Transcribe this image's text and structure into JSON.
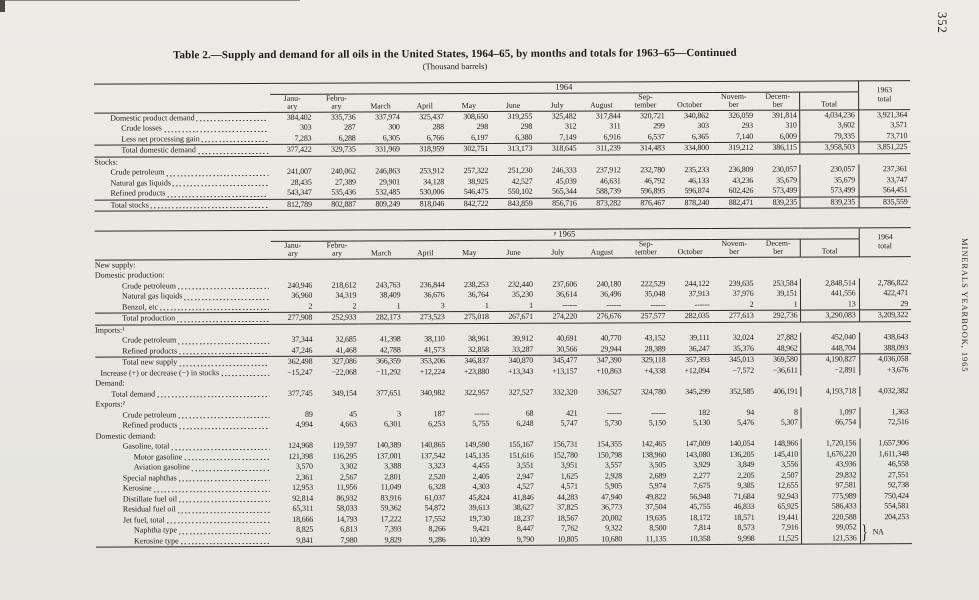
{
  "page": {
    "number": "352",
    "sidebar": "MINERALS YEARBOOK, 1965",
    "title": "Table 2.—Supply and demand for all oils in the United States, 1964–65, by months and totals for 1963–65—Continued",
    "subtitle": "(Thousand barrels)"
  },
  "tables": [
    {
      "year_label": "1964",
      "prior_label": "1963\ntotal",
      "months": [
        "Janu-\nary",
        "Febru-\nary",
        "March",
        "April",
        "May",
        "June",
        "July",
        "August",
        "Sep-\ntember",
        "October",
        "Novem-\nber",
        "Decem-\nber",
        "Total"
      ],
      "rows": [
        {
          "label": "Domestic product demand",
          "indent": 1,
          "values": [
            "384,402",
            "335,736",
            "337,974",
            "325,437",
            "308,650",
            "319,255",
            "325,482",
            "317,844",
            "320,721",
            "340,862",
            "326,059",
            "391,814",
            "4,034,236",
            "3,921,364"
          ]
        },
        {
          "label": "Crude losses",
          "indent": 2,
          "values": [
            "303",
            "287",
            "300",
            "288",
            "298",
            "298",
            "312",
            "311",
            "299",
            "303",
            "293",
            "310",
            "3,602",
            "3,571"
          ]
        },
        {
          "label": "Less net processing gain",
          "indent": 2,
          "values": [
            "7,283",
            "6,288",
            "6,305",
            "6,766",
            "6,197",
            "6,380",
            "7,149",
            "6,916",
            "6,537",
            "6,365",
            "7,140",
            "6,009",
            "79,335",
            "73,710"
          ]
        },
        {
          "label": "Total domestic demand",
          "indent": 2,
          "rule_above": true,
          "values": [
            "377,422",
            "329,735",
            "331,969",
            "318,959",
            "302,751",
            "313,173",
            "318,645",
            "311,239",
            "314,483",
            "334,800",
            "319,212",
            "386,115",
            "3,958,503",
            "3,851,225"
          ]
        },
        {
          "label": "Stocks:",
          "indent": 0,
          "section": true,
          "rule_above": true
        },
        {
          "label": "Crude petroleum",
          "indent": 1,
          "values": [
            "241,007",
            "240,062",
            "246,863",
            "253,912",
            "257,322",
            "251,230",
            "246,333",
            "237,912",
            "232,780",
            "235,233",
            "236,809",
            "230,057",
            "230,057",
            "237,361"
          ]
        },
        {
          "label": "Natural gas liquids",
          "indent": 1,
          "values": [
            "28,435",
            "27,389",
            "29,901",
            "34,128",
            "38,925",
            "42,527",
            "45,039",
            "46,631",
            "46,792",
            "46,133",
            "43,236",
            "35,679",
            "35,679",
            "33,747"
          ]
        },
        {
          "label": "Refined products",
          "indent": 1,
          "values": [
            "543,347",
            "535,436",
            "532,485",
            "530,006",
            "546,475",
            "550,102",
            "565,344",
            "588,739",
            "596,895",
            "596,874",
            "602,426",
            "573,499",
            "573,499",
            "564,451"
          ]
        },
        {
          "label": "Total stocks",
          "indent": 1,
          "rule_above": true,
          "values": [
            "812,789",
            "802,887",
            "809,249",
            "818,046",
            "842,722",
            "843,859",
            "856,716",
            "873,282",
            "876,467",
            "878,240",
            "882,471",
            "839,235",
            "839,235",
            "835,559"
          ]
        }
      ]
    },
    {
      "year_label": "ᵖ 1965",
      "prior_label": "1964\ntotal",
      "months": [
        "Janu-\nary",
        "Febru-\nary",
        "March",
        "April",
        "May",
        "June",
        "July",
        "August",
        "Sep-\ntember",
        "October",
        "Novem-\nber",
        "Decem-\nber",
        "Total"
      ],
      "rows": [
        {
          "label": "New supply:",
          "indent": 0,
          "section": true
        },
        {
          "label": "Domestic production:",
          "indent": 1,
          "section": true
        },
        {
          "label": "Crude petroleum",
          "indent": 2,
          "values": [
            "240,946",
            "218,612",
            "243,763",
            "236,844",
            "238,253",
            "232,440",
            "237,606",
            "240,180",
            "222,529",
            "244,122",
            "239,635",
            "253,584",
            "2,848,514",
            "2,786,822"
          ]
        },
        {
          "label": "Natural gas liquids",
          "indent": 2,
          "values": [
            "36,960",
            "34,319",
            "38,409",
            "36,676",
            "36,764",
            "35,230",
            "36,614",
            "36,496",
            "35,048",
            "37,913",
            "37,976",
            "39,151",
            "441,556",
            "422,471"
          ]
        },
        {
          "label": "Benzol, etc",
          "indent": 2,
          "values": [
            "2",
            "2",
            "1",
            "3",
            "1",
            "1",
            "------",
            "------",
            "------",
            "------",
            "2",
            "1",
            "13",
            "29"
          ]
        },
        {
          "label": "Total production",
          "indent": 2,
          "rule_above": true,
          "values": [
            "277,908",
            "252,933",
            "282,173",
            "273,523",
            "275,018",
            "267,671",
            "274,220",
            "276,676",
            "257,577",
            "282,035",
            "277,613",
            "292,736",
            "3,290,083",
            "3,209,322"
          ]
        },
        {
          "label": "Imports:¹",
          "indent": 1,
          "section": true,
          "rule_above": true
        },
        {
          "label": "Crude petroleum",
          "indent": 2,
          "values": [
            "37,344",
            "32,685",
            "41,398",
            "38,110",
            "38,961",
            "39,912",
            "40,691",
            "40,770",
            "43,152",
            "39,111",
            "32,024",
            "27,882",
            "452,040",
            "438,643"
          ]
        },
        {
          "label": "Refined products",
          "indent": 2,
          "values": [
            "47,246",
            "41,468",
            "42,788",
            "41,573",
            "32,858",
            "33,287",
            "30,566",
            "29,944",
            "28,389",
            "36,247",
            "35,376",
            "48,962",
            "448,704",
            "388,093"
          ]
        },
        {
          "label": "Total new supply",
          "indent": 2,
          "rule_above": true,
          "values": [
            "362,498",
            "327,086",
            "366,359",
            "353,206",
            "346,837",
            "340,870",
            "345,477",
            "347,390",
            "329,118",
            "357,393",
            "345,013",
            "369,580",
            "4,190,827",
            "4,036,058"
          ]
        },
        {
          "label": "Increase (+) or decrease (−) in stocks",
          "indent": 0,
          "values": [
            "−15,247",
            "−22,068",
            "−11,292",
            "+12,224",
            "+23,880",
            "+13,343",
            "+13,157",
            "+10,863",
            "+4,338",
            "+12,094",
            "−7,572",
            "−36,611",
            "−2,891",
            "+3,676"
          ]
        },
        {
          "label": "Demand:",
          "indent": 0,
          "section": true
        },
        {
          "label": "Total demand",
          "indent": 1,
          "values": [
            "377,745",
            "349,154",
            "377,651",
            "340,982",
            "322,957",
            "327,527",
            "332,320",
            "336,527",
            "324,780",
            "345,299",
            "352,585",
            "406,191",
            "4,193,718",
            "4,032,382"
          ]
        },
        {
          "label": "Exports:²",
          "indent": 1,
          "section": true
        },
        {
          "label": "Crude petroleum",
          "indent": 2,
          "values": [
            "89",
            "45",
            "3",
            "187",
            "------",
            "68",
            "421",
            "------",
            "------",
            "182",
            "94",
            "8",
            "1,097",
            "1,363"
          ]
        },
        {
          "label": "Refined products",
          "indent": 2,
          "values": [
            "4,994",
            "4,663",
            "6,301",
            "6,253",
            "5,755",
            "6,248",
            "5,747",
            "5,730",
            "5,150",
            "5,130",
            "5,476",
            "5,307",
            "66,754",
            "72,516"
          ]
        },
        {
          "label": "Domestic demand:",
          "indent": 1,
          "section": true
        },
        {
          "label": "Gasoline, total",
          "indent": 2,
          "values": [
            "124,968",
            "119,597",
            "140,389",
            "140,865",
            "149,590",
            "155,167",
            "156,731",
            "154,355",
            "142,465",
            "147,009",
            "140,054",
            "148,966",
            "1,720,156",
            "1,657,906"
          ]
        },
        {
          "label": "Motor gasoline",
          "indent": 3,
          "values": [
            "121,398",
            "116,295",
            "137,001",
            "137,542",
            "145,135",
            "151,616",
            "152,780",
            "150,798",
            "138,960",
            "143,080",
            "136,205",
            "145,410",
            "1,676,220",
            "1,611,348"
          ]
        },
        {
          "label": "Aviation gasoline",
          "indent": 3,
          "values": [
            "3,570",
            "3,302",
            "3,388",
            "3,323",
            "4,455",
            "3,551",
            "3,951",
            "3,557",
            "3,505",
            "3,929",
            "3,849",
            "3,556",
            "43,936",
            "46,558"
          ]
        },
        {
          "label": "Special naphthas",
          "indent": 2,
          "values": [
            "2,361",
            "2,567",
            "2,801",
            "2,520",
            "2,405",
            "2,947",
            "1,625",
            "2,928",
            "2,689",
            "2,277",
            "2,205",
            "2,507",
            "29,832",
            "27,551"
          ]
        },
        {
          "label": "Kerosine",
          "indent": 2,
          "values": [
            "12,953",
            "11,956",
            "11,049",
            "6,328",
            "4,303",
            "4,527",
            "4,571",
            "5,905",
            "5,974",
            "7,675",
            "9,385",
            "12,655",
            "97,581",
            "92,738"
          ]
        },
        {
          "label": "Distillate fuel oil",
          "indent": 2,
          "values": [
            "92,814",
            "86,932",
            "83,916",
            "61,037",
            "45,824",
            "41,846",
            "44,283",
            "47,940",
            "49,822",
            "56,948",
            "71,684",
            "92,943",
            "775,989",
            "750,424"
          ]
        },
        {
          "label": "Residual fuel oil",
          "indent": 2,
          "values": [
            "65,311",
            "58,033",
            "59,362",
            "54,872",
            "39,613",
            "38,627",
            "37,825",
            "36,773",
            "37,504",
            "45,755",
            "46,833",
            "65,925",
            "586,433",
            "554,581"
          ]
        },
        {
          "label": "Jet fuel, total",
          "indent": 2,
          "values": [
            "18,666",
            "14,793",
            "17,222",
            "17,552",
            "19,730",
            "18,237",
            "18,567",
            "20,002",
            "19,635",
            "18,172",
            "18,571",
            "19,441",
            "220,588",
            "204,253"
          ]
        },
        {
          "label": "Naphtha type",
          "indent": 3,
          "values": [
            "8,825",
            "6,813",
            "7,393",
            "8,266",
            "9,421",
            "8,447",
            "7,762",
            "9,322",
            "8,500",
            "7,814",
            "8,573",
            "7,916",
            "99,052"
          ],
          "na_group": {
            "value": "NA",
            "rowspan": 2
          }
        },
        {
          "label": "Kerosine type",
          "indent": 3,
          "values": [
            "9,841",
            "7,980",
            "9,829",
            "9,286",
            "10,309",
            "9,790",
            "10,805",
            "10,680",
            "11,135",
            "10,358",
            "9,998",
            "11,525",
            "121,536"
          ]
        }
      ]
    }
  ]
}
